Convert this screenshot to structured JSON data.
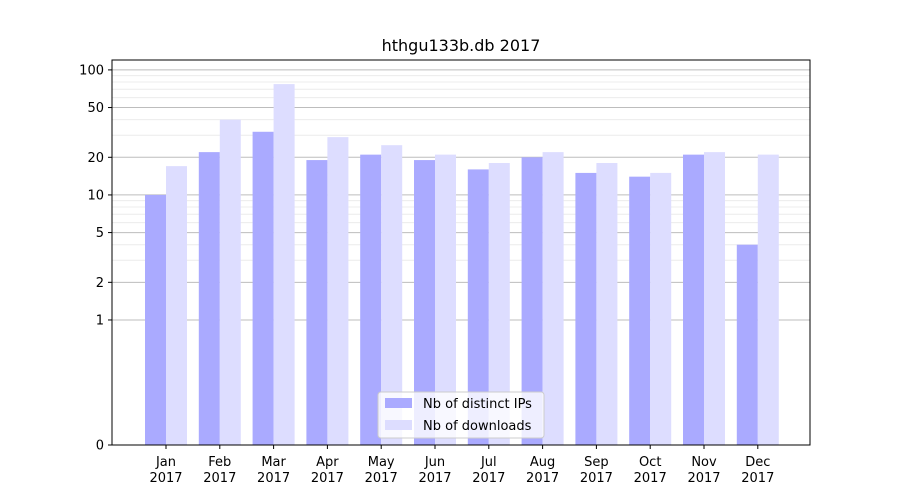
{
  "chart_data": {
    "type": "bar",
    "title": "hthgu133b.db 2017",
    "xlabel": "",
    "ylabel": "",
    "categories": [
      {
        "month": "Jan",
        "year": "2017"
      },
      {
        "month": "Feb",
        "year": "2017"
      },
      {
        "month": "Mar",
        "year": "2017"
      },
      {
        "month": "Apr",
        "year": "2017"
      },
      {
        "month": "May",
        "year": "2017"
      },
      {
        "month": "Jun",
        "year": "2017"
      },
      {
        "month": "Jul",
        "year": "2017"
      },
      {
        "month": "Aug",
        "year": "2017"
      },
      {
        "month": "Sep",
        "year": "2017"
      },
      {
        "month": "Oct",
        "year": "2017"
      },
      {
        "month": "Nov",
        "year": "2017"
      },
      {
        "month": "Dec",
        "year": "2017"
      }
    ],
    "series": [
      {
        "name": "Nb of distinct IPs",
        "color": "#aaaaff",
        "values": [
          10,
          22,
          32,
          19,
          21,
          19,
          16,
          20,
          15,
          14,
          21,
          4
        ]
      },
      {
        "name": "Nb of downloads",
        "color": "#ddddff",
        "values": [
          17,
          40,
          77,
          29,
          25,
          21,
          18,
          22,
          18,
          15,
          22,
          21
        ]
      }
    ],
    "y_scale": "symlog",
    "ylim": [
      0,
      120
    ],
    "y_ticks": [
      "0",
      "1",
      "2",
      "5",
      "10",
      "20",
      "50",
      "100"
    ],
    "grid": true,
    "legend_position": "lower-center"
  }
}
